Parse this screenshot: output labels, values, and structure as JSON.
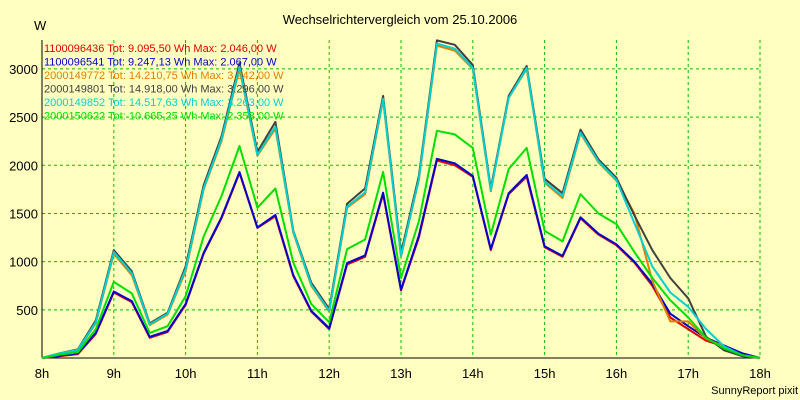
{
  "chart_data": {
    "type": "line",
    "title": "Wechselrichtervergleich vom 25.10.2006",
    "ylabel": "W",
    "xlabel": "",
    "credit": "SunnyReport pixit",
    "x_ticks": [
      "8h",
      "9h",
      "10h",
      "11h",
      "12h",
      "13h",
      "14h",
      "15h",
      "16h",
      "17h",
      "18h"
    ],
    "y_ticks": [
      500,
      1000,
      1500,
      2000,
      2500,
      3000
    ],
    "xlim": [
      8,
      18
    ],
    "ylim": [
      0,
      3300
    ],
    "grid": true,
    "legend_position": "top-left",
    "x": [
      8.0,
      8.25,
      8.5,
      8.75,
      9.0,
      9.25,
      9.5,
      9.75,
      10.0,
      10.25,
      10.5,
      10.75,
      11.0,
      11.25,
      11.5,
      11.75,
      12.0,
      12.25,
      12.5,
      12.75,
      13.0,
      13.25,
      13.5,
      13.75,
      14.0,
      14.25,
      14.5,
      14.75,
      15.0,
      15.25,
      15.5,
      15.75,
      16.0,
      16.25,
      16.5,
      16.75,
      17.0,
      17.25,
      17.5,
      17.75,
      18.0
    ],
    "series": [
      {
        "name": "1100096436 Tot: 9.095,50 Wh Max: 2.046,00 W",
        "color": "#e00000",
        "values": [
          0,
          20,
          40,
          250,
          680,
          580,
          210,
          270,
          550,
          1080,
          1450,
          1920,
          1350,
          1470,
          850,
          480,
          300,
          970,
          1050,
          1700,
          700,
          1250,
          2050,
          2000,
          1880,
          1120,
          1700,
          1880,
          1150,
          1050,
          1450,
          1280,
          1170,
          990,
          750,
          420,
          300,
          180,
          120,
          40,
          0
        ]
      },
      {
        "name": "1100096541 Tot: 9.247,13 Wh Max: 2.067,00 W",
        "color": "#0000d0",
        "values": [
          0,
          25,
          50,
          260,
          690,
          590,
          220,
          280,
          560,
          1090,
          1460,
          1930,
          1355,
          1485,
          860,
          490,
          310,
          985,
          1065,
          1715,
          710,
          1270,
          2067,
          2020,
          1890,
          1130,
          1710,
          1900,
          1160,
          1060,
          1460,
          1290,
          1180,
          1000,
          770,
          460,
          330,
          210,
          130,
          50,
          0
        ]
      },
      {
        "name": "2000149772 Tot: 14.210,75 Wh Max: 3.242,00 W",
        "color": "#e08000",
        "values": [
          0,
          45,
          80,
          360,
          1080,
          860,
          340,
          450,
          900,
          1750,
          2250,
          3000,
          2100,
          2380,
          1300,
          750,
          480,
          1560,
          1700,
          2680,
          1050,
          1850,
          3242,
          3190,
          3000,
          1730,
          2700,
          3000,
          1820,
          1660,
          2330,
          2030,
          1840,
          1500,
          800,
          380,
          380,
          200,
          120,
          30,
          0
        ]
      },
      {
        "name": "2000149801 Tot: 14.918,00 Wh Max: 3.296,00 W",
        "color": "#404040",
        "values": [
          0,
          50,
          90,
          390,
          1120,
          900,
          360,
          470,
          950,
          1790,
          2300,
          3060,
          2140,
          2450,
          1320,
          780,
          510,
          1600,
          1760,
          2720,
          1090,
          1890,
          3296,
          3250,
          3040,
          1760,
          2720,
          3030,
          1860,
          1710,
          2370,
          2060,
          1870,
          1480,
          1120,
          830,
          620,
          220,
          80,
          20,
          0
        ]
      },
      {
        "name": "2000149852 Tot: 14.517,63 Wh Max: 3.263,00 W",
        "color": "#00d0d0",
        "values": [
          0,
          48,
          85,
          370,
          1100,
          880,
          350,
          460,
          920,
          1760,
          2270,
          3020,
          2110,
          2400,
          1310,
          760,
          490,
          1570,
          1720,
          2690,
          1060,
          1860,
          3263,
          3210,
          3010,
          1740,
          2700,
          3010,
          1830,
          1680,
          2340,
          2040,
          1850,
          1400,
          950,
          680,
          530,
          300,
          120,
          30,
          0
        ]
      },
      {
        "name": "2000150622 Tot: 10.665,25 Wh Max: 2.358,00 W",
        "color": "#00e000",
        "values": [
          0,
          35,
          60,
          300,
          790,
          670,
          260,
          330,
          640,
          1260,
          1680,
          2200,
          1560,
          1760,
          990,
          560,
          370,
          1130,
          1230,
          1930,
          830,
          1420,
          2358,
          2320,
          2180,
          1280,
          1960,
          2180,
          1320,
          1210,
          1700,
          1500,
          1390,
          1100,
          830,
          600,
          420,
          210,
          100,
          30,
          0
        ]
      }
    ]
  }
}
